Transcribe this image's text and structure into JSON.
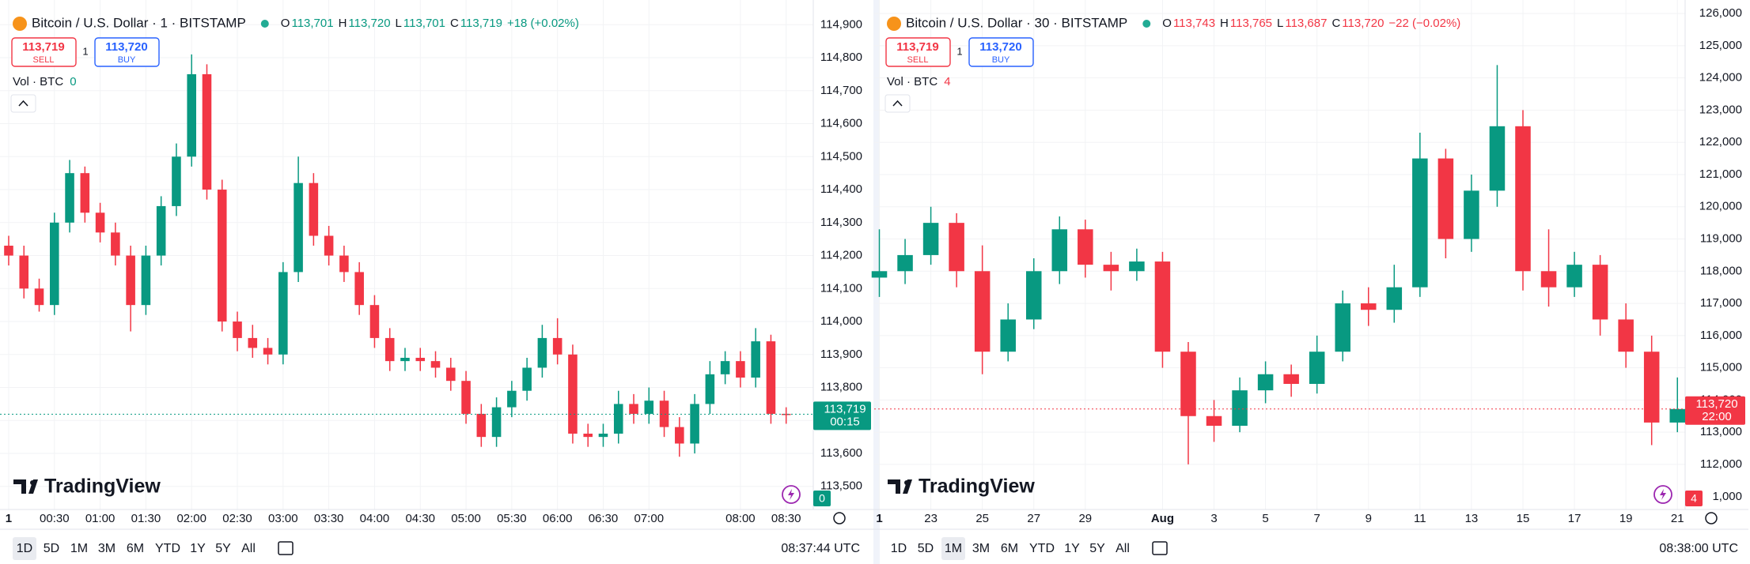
{
  "charts": [
    {
      "symbol": "Bitcoin / U.S. Dollar · 1 · BITSTAMP",
      "ohlc": [
        {
          "key": "O",
          "value": "113,701"
        },
        {
          "key": "H",
          "value": "113,720"
        },
        {
          "key": "L",
          "value": "113,701"
        },
        {
          "key": "C",
          "value": "113,719"
        }
      ],
      "change": "+18 (+0.02%)",
      "change_color": "#089981",
      "sell": {
        "price": "113,719",
        "label": "SELL"
      },
      "quantity": "1",
      "buy": {
        "price": "113,720",
        "label": "BUY"
      },
      "volume_label": "Vol · BTC",
      "volume_value": "0",
      "volume_color": "#089981",
      "watermark": "TradingView",
      "xlim": [
        -5.7,
        527.8
      ],
      "xticks": [
        {
          "value": 0,
          "label": "1"
        },
        {
          "value": 30,
          "label": "00:30"
        },
        {
          "value": 60,
          "label": "01:00"
        },
        {
          "value": 90,
          "label": "01:30"
        },
        {
          "value": 120,
          "label": "02:00"
        },
        {
          "value": 150,
          "label": "02:30"
        },
        {
          "value": 180,
          "label": "03:00"
        },
        {
          "value": 210,
          "label": "03:30"
        },
        {
          "value": 240,
          "label": "04:00"
        },
        {
          "value": 270,
          "label": "04:30"
        },
        {
          "value": 300,
          "label": "05:00"
        },
        {
          "value": 330,
          "label": "05:30"
        },
        {
          "value": 360,
          "label": "06:00"
        },
        {
          "value": 390,
          "label": "06:30"
        },
        {
          "value": 420,
          "label": "07:00"
        },
        {
          "value": 480,
          "label": "08:00"
        },
        {
          "value": 510,
          "label": "08:30"
        }
      ],
      "ylim": [
        113430,
        114975
      ],
      "yticks": [
        {
          "value": 113500,
          "label": "113,500"
        },
        {
          "value": 113600,
          "label": "113,600"
        },
        {
          "value": 113700,
          "label": "113,700"
        },
        {
          "value": 113800,
          "label": "113,800"
        },
        {
          "value": 113900,
          "label": "113,900"
        },
        {
          "value": 114000,
          "label": "114,000"
        },
        {
          "value": 114100,
          "label": "114,100"
        },
        {
          "value": 114200,
          "label": "114,200"
        },
        {
          "value": 114300,
          "label": "114,300"
        },
        {
          "value": 114400,
          "label": "114,400"
        },
        {
          "value": 114500,
          "label": "114,500"
        },
        {
          "value": 114600,
          "label": "114,600"
        },
        {
          "value": 114700,
          "label": "114,700"
        },
        {
          "value": 114800,
          "label": "114,800"
        },
        {
          "value": 114900,
          "label": "114,900"
        }
      ],
      "grid": true,
      "up_color": "#089981",
      "down_color": "#f23645",
      "candles": {
        "x": [
          0,
          10,
          20,
          30,
          40,
          50,
          60,
          70,
          80,
          90,
          100,
          110,
          120,
          130,
          140,
          150,
          160,
          170,
          180,
          190,
          200,
          210,
          220,
          230,
          240,
          250,
          260,
          270,
          280,
          290,
          300,
          310,
          320,
          330,
          340,
          350,
          360,
          370,
          380,
          390,
          400,
          410,
          420,
          430,
          440,
          450,
          460,
          470,
          480,
          490,
          500,
          510
        ],
        "open": [
          114230,
          114200,
          114100,
          114050,
          114300,
          114450,
          114330,
          114270,
          114200,
          114050,
          114200,
          114350,
          114500,
          114750,
          114400,
          114000,
          113950,
          113920,
          113900,
          114150,
          114420,
          114260,
          114200,
          114150,
          114050,
          113950,
          113880,
          113890,
          113880,
          113860,
          113820,
          113720,
          113650,
          113740,
          113790,
          113860,
          113950,
          113900,
          113660,
          113650,
          113660,
          113750,
          113720,
          113760,
          113680,
          113630,
          113750,
          113840,
          113880,
          113830,
          113940,
          113720
        ],
        "high": [
          114260,
          114230,
          114130,
          114330,
          114490,
          114470,
          114360,
          114300,
          114230,
          114230,
          114380,
          114540,
          114810,
          114780,
          114430,
          114030,
          113990,
          113950,
          114180,
          114500,
          114450,
          114290,
          114230,
          114180,
          114080,
          113980,
          113920,
          113920,
          113910,
          113890,
          113850,
          113750,
          113770,
          113820,
          113890,
          113990,
          114010,
          113930,
          113690,
          113690,
          113790,
          113780,
          113800,
          113790,
          113710,
          113780,
          113880,
          113910,
          113910,
          113980,
          113960,
          113740
        ],
        "low": [
          114170,
          114070,
          114030,
          114020,
          114270,
          114300,
          114240,
          114170,
          113970,
          114020,
          114170,
          114320,
          114470,
          114370,
          113970,
          113910,
          113890,
          113870,
          113870,
          114120,
          114230,
          114170,
          114120,
          114020,
          113920,
          113850,
          113850,
          113850,
          113830,
          113790,
          113690,
          113620,
          113620,
          113710,
          113760,
          113830,
          113870,
          113630,
          113620,
          113620,
          113630,
          113690,
          113690,
          113650,
          113590,
          113600,
          113720,
          113810,
          113800,
          113800,
          113690,
          113690
        ],
        "close": [
          114200,
          114100,
          114050,
          114300,
          114450,
          114330,
          114270,
          114200,
          114050,
          114200,
          114350,
          114500,
          114750,
          114400,
          114000,
          113950,
          113920,
          113900,
          114150,
          114420,
          114260,
          114200,
          114150,
          114050,
          113950,
          113880,
          113890,
          113880,
          113860,
          113820,
          113720,
          113650,
          113740,
          113790,
          113860,
          113950,
          113900,
          113660,
          113650,
          113660,
          113750,
          113720,
          113760,
          113680,
          113630,
          113750,
          113840,
          113880,
          113830,
          113940,
          113720,
          113719
        ]
      },
      "price_tag": "113,719",
      "countdown": "00:15",
      "tag_color": "#089981",
      "volume_tag": "0",
      "ranges": [
        "1D",
        "5D",
        "1M",
        "3M",
        "6M",
        "YTD",
        "1Y",
        "5Y",
        "All"
      ],
      "active_range_index": 0,
      "clock": "08:37:44 UTC"
    },
    {
      "symbol": "Bitcoin / U.S. Dollar · 30 · BITSTAMP",
      "ohlc": [
        {
          "key": "O",
          "value": "113,743"
        },
        {
          "key": "H",
          "value": "113,765"
        },
        {
          "key": "L",
          "value": "113,687"
        },
        {
          "key": "C",
          "value": "113,720"
        }
      ],
      "change": "−22 (−0.02%)",
      "change_color": "#f23645",
      "sell": {
        "price": "113,719",
        "label": "SELL"
      },
      "quantity": "1",
      "buy": {
        "price": "113,720",
        "label": "BUY"
      },
      "volume_label": "Vol · BTC",
      "volume_value": "4",
      "volume_color": "#f23645",
      "watermark": "TradingView",
      "xlim": [
        -0.2,
        31.3
      ],
      "xticks": [
        {
          "value": 0,
          "label": "1"
        },
        {
          "value": 2,
          "label": "23"
        },
        {
          "value": 4,
          "label": "25"
        },
        {
          "value": 6,
          "label": "27"
        },
        {
          "value": 8,
          "label": "29"
        },
        {
          "value": 11,
          "label": "Aug"
        },
        {
          "value": 13,
          "label": "3"
        },
        {
          "value": 15,
          "label": "5"
        },
        {
          "value": 17,
          "label": "7"
        },
        {
          "value": 19,
          "label": "9"
        },
        {
          "value": 21,
          "label": "11"
        },
        {
          "value": 23,
          "label": "13"
        },
        {
          "value": 25,
          "label": "15"
        },
        {
          "value": 27,
          "label": "17"
        },
        {
          "value": 29,
          "label": "19"
        },
        {
          "value": 31,
          "label": "21"
        }
      ],
      "ylim": [
        110600,
        126420
      ],
      "yticks": [
        {
          "value": 112000,
          "label": "112,000"
        },
        {
          "value": 113000,
          "label": "113,000"
        },
        {
          "value": 114000,
          "label": "114,000"
        },
        {
          "value": 115000,
          "label": "115,000"
        },
        {
          "value": 116000,
          "label": "116,000"
        },
        {
          "value": 117000,
          "label": "117,000"
        },
        {
          "value": 118000,
          "label": "118,000"
        },
        {
          "value": 119000,
          "label": "119,000"
        },
        {
          "value": 120000,
          "label": "120,000"
        },
        {
          "value": 121000,
          "label": "121,000"
        },
        {
          "value": 122000,
          "label": "122,000"
        },
        {
          "value": 123000,
          "label": "123,000"
        },
        {
          "value": 124000,
          "label": "124,000"
        },
        {
          "value": 125000,
          "label": "125,000"
        },
        {
          "value": 126000,
          "label": "126,000"
        }
      ],
      "volume_tick": "1,000",
      "grid": true,
      "up_color": "#089981",
      "down_color": "#f23645",
      "candles": {
        "x": [
          0,
          1,
          2,
          3,
          4,
          5,
          6,
          7,
          8,
          9,
          10,
          11,
          12,
          13,
          14,
          15,
          16,
          17,
          18,
          19,
          20,
          21,
          22,
          23,
          24,
          25,
          26,
          27,
          28,
          29,
          30,
          31
        ],
        "open": [
          117800,
          118000,
          118500,
          119500,
          118000,
          115500,
          116500,
          118000,
          119300,
          118200,
          118000,
          118300,
          115500,
          113500,
          113200,
          114300,
          114800,
          114500,
          115500,
          117000,
          116800,
          117500,
          121500,
          119000,
          120500,
          122500,
          118000,
          117500,
          118200,
          116500,
          115500,
          113300
        ],
        "high": [
          119300,
          119000,
          120000,
          119800,
          118800,
          117000,
          118400,
          119700,
          119600,
          118600,
          118700,
          118600,
          115800,
          114000,
          114700,
          115200,
          115100,
          116000,
          117400,
          117500,
          118200,
          122300,
          121800,
          121000,
          124400,
          123000,
          119300,
          118600,
          118500,
          117000,
          116000,
          114700
        ],
        "low": [
          117200,
          117600,
          118200,
          117500,
          114800,
          115200,
          116200,
          117600,
          117800,
          117400,
          117700,
          115000,
          112000,
          112700,
          113000,
          113900,
          114100,
          114200,
          115200,
          116300,
          116400,
          117200,
          118400,
          118600,
          120000,
          117400,
          116900,
          117200,
          116000,
          115000,
          112600,
          113000
        ],
        "close": [
          118000,
          118500,
          119500,
          118000,
          115500,
          116500,
          118000,
          119300,
          118200,
          118000,
          118300,
          115500,
          113500,
          113200,
          114300,
          114800,
          114500,
          115500,
          117000,
          116800,
          117500,
          121500,
          119000,
          120500,
          122500,
          118000,
          117500,
          118200,
          116500,
          115500,
          113300,
          113720
        ]
      },
      "price_tag": "113,720",
      "countdown": "22:00",
      "tag_color": "#f23645",
      "volume_tag": "4",
      "ranges": [
        "1D",
        "5D",
        "1M",
        "3M",
        "6M",
        "YTD",
        "1Y",
        "5Y",
        "All"
      ],
      "active_range_index": 2,
      "clock": "08:38:00 UTC"
    }
  ]
}
